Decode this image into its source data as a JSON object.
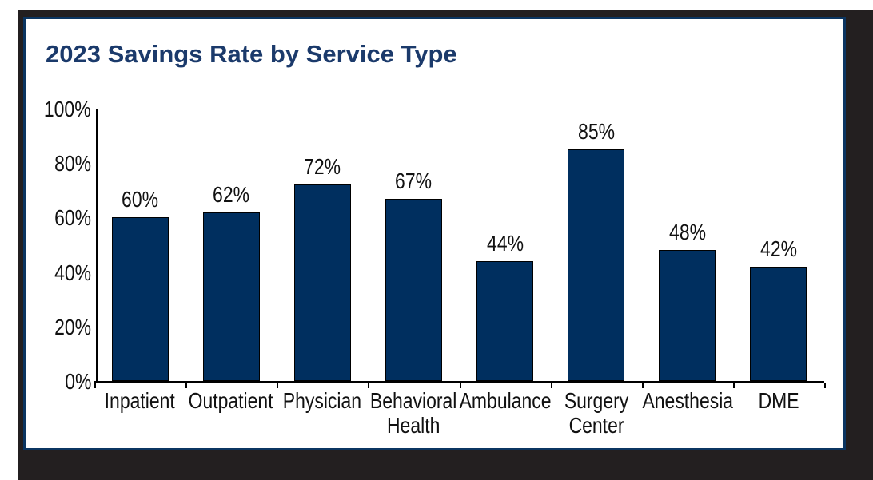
{
  "page": {
    "background": "#ffffff",
    "frame_color": "#231f20",
    "panel_border_color": "#0b3561",
    "panel_background": "#ffffff"
  },
  "chart_data": {
    "type": "bar",
    "title": "2023 Savings Rate by Service Type",
    "title_color": "#1b3a6b",
    "categories": [
      "Inpatient",
      "Outpatient",
      "Physician",
      "Behavioral Health",
      "Ambulance",
      "Surgery Center",
      "Anesthesia",
      "DME"
    ],
    "category_label_lines": [
      [
        "Inpatient"
      ],
      [
        "Outpatient"
      ],
      [
        "Physician"
      ],
      [
        "Behavioral",
        "Health"
      ],
      [
        "Ambulance"
      ],
      [
        "Surgery",
        "Center"
      ],
      [
        "Anesthesia"
      ],
      [
        "DME"
      ]
    ],
    "values": [
      60,
      62,
      72,
      67,
      44,
      85,
      48,
      42
    ],
    "value_labels": [
      "60%",
      "62%",
      "72%",
      "67%",
      "44%",
      "85%",
      "48%",
      "42%"
    ],
    "y_axis_tick_labels": [
      "100%",
      "80%",
      "60%",
      "40%",
      "20%",
      "0%"
    ],
    "y_axis_tick_values": [
      100,
      80,
      60,
      40,
      20,
      0
    ],
    "ylim": [
      0,
      100
    ],
    "xlabel": "",
    "ylabel": "",
    "bar_color": "#002f5f",
    "bar_outline_color": "#000000",
    "axis_color": "#000000",
    "label_color": "#111111",
    "grid": false,
    "legend": "none"
  }
}
